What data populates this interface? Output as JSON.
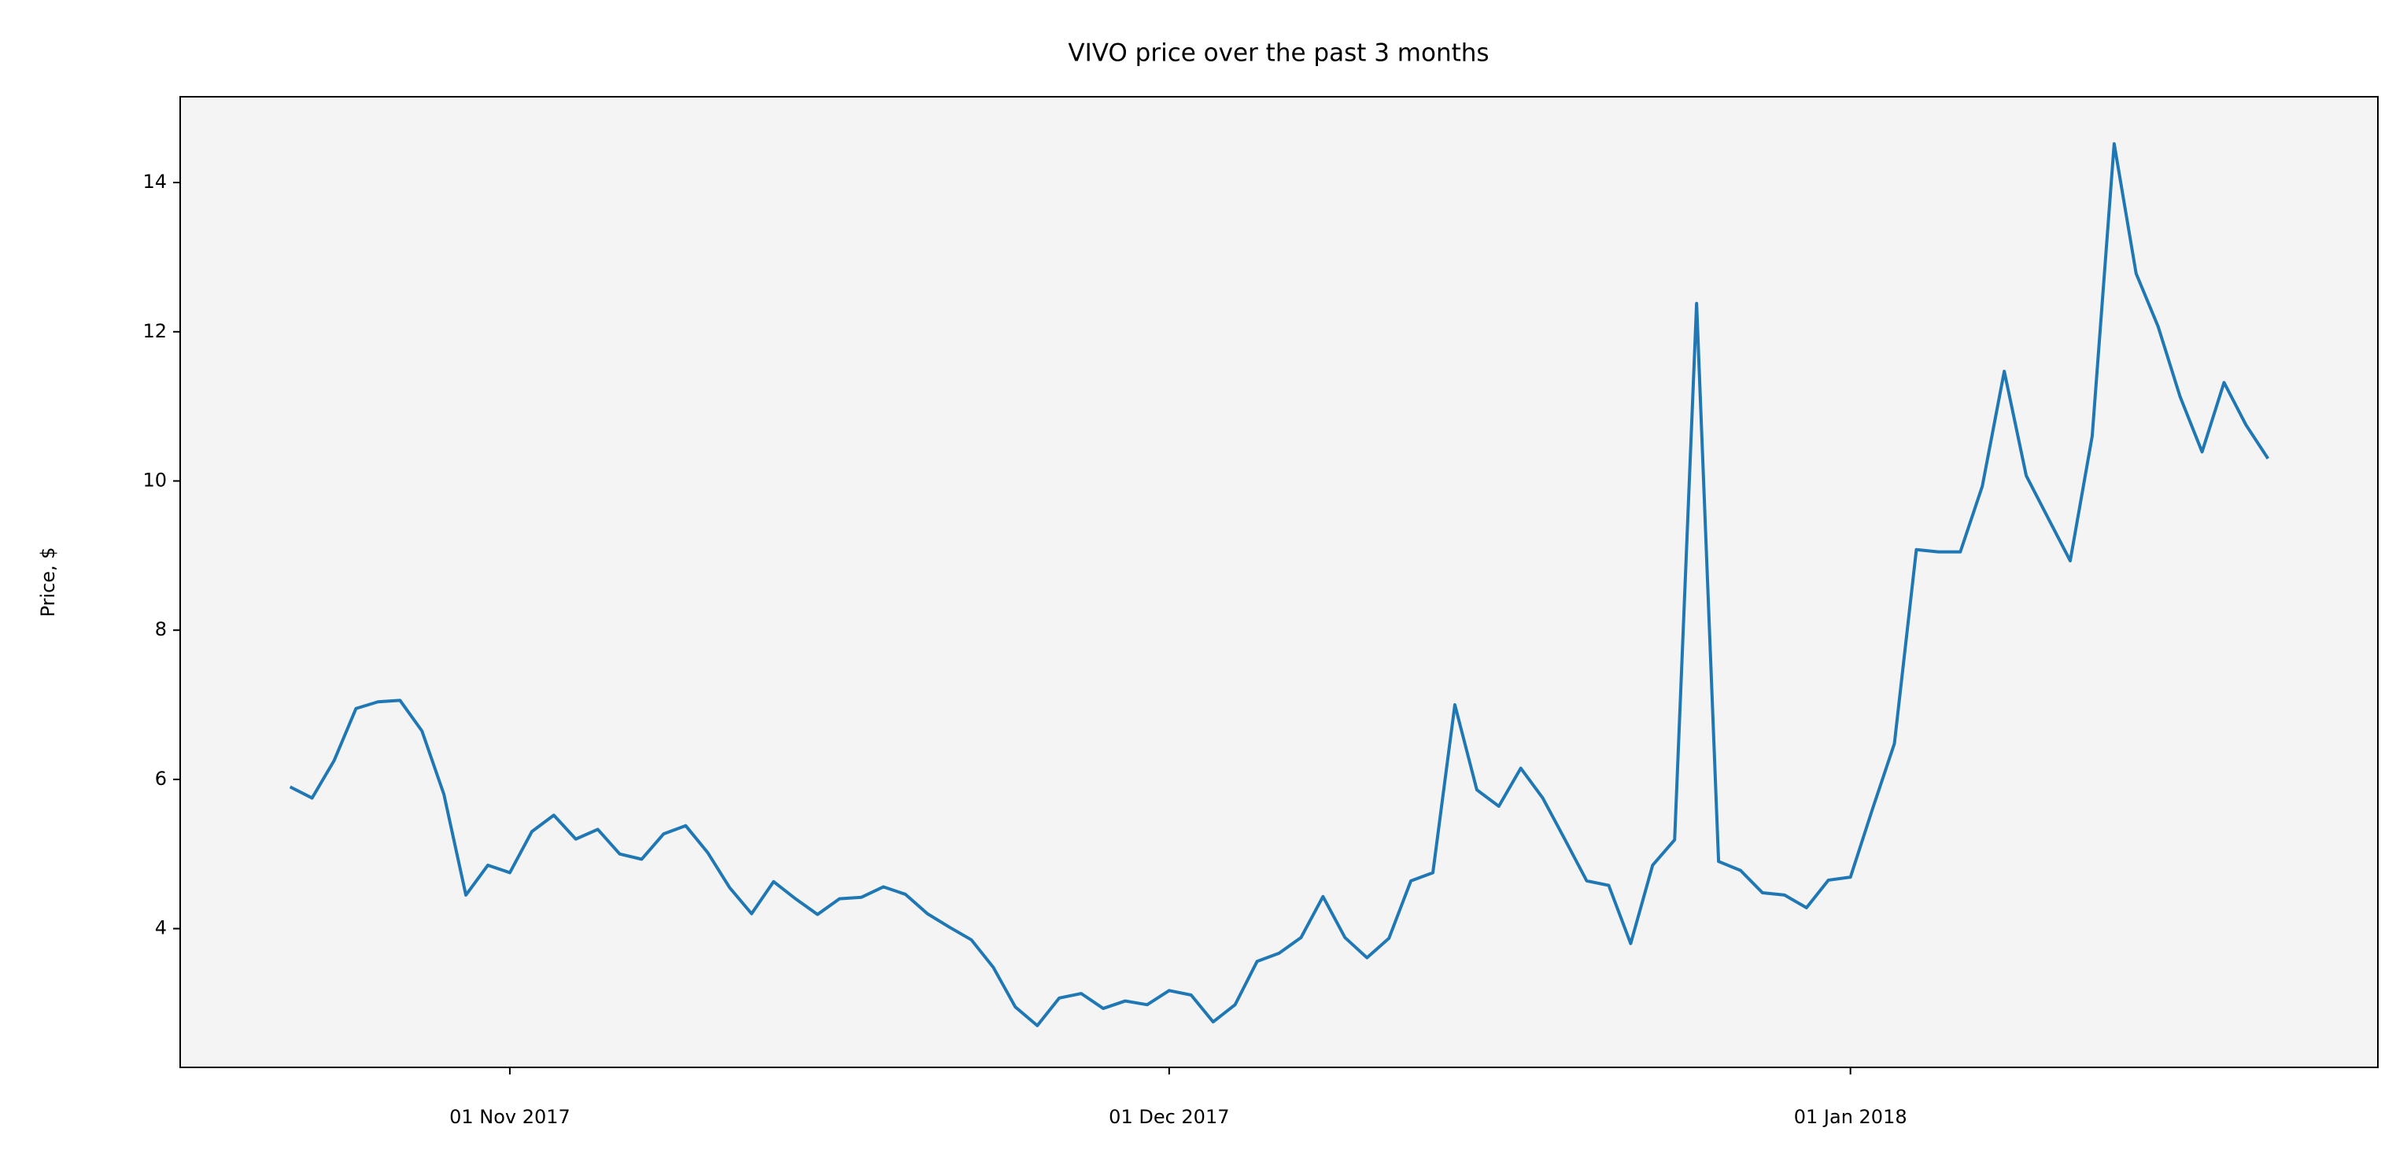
{
  "chart_data": {
    "type": "line",
    "title": "VIVO price over the past 3 months",
    "y_label": "Price, $",
    "x": [
      "2017-10-22",
      "2017-10-23",
      "2017-10-24",
      "2017-10-25",
      "2017-10-26",
      "2017-10-27",
      "2017-10-28",
      "2017-10-29",
      "2017-10-30",
      "2017-10-31",
      "2017-11-01",
      "2017-11-02",
      "2017-11-03",
      "2017-11-04",
      "2017-11-05",
      "2017-11-06",
      "2017-11-07",
      "2017-11-08",
      "2017-11-09",
      "2017-11-10",
      "2017-11-11",
      "2017-11-12",
      "2017-11-13",
      "2017-11-14",
      "2017-11-15",
      "2017-11-16",
      "2017-11-17",
      "2017-11-18",
      "2017-11-19",
      "2017-11-20",
      "2017-11-21",
      "2017-11-22",
      "2017-11-23",
      "2017-11-24",
      "2017-11-25",
      "2017-11-26",
      "2017-11-27",
      "2017-11-28",
      "2017-11-29",
      "2017-11-30",
      "2017-12-01",
      "2017-12-02",
      "2017-12-03",
      "2017-12-04",
      "2017-12-05",
      "2017-12-06",
      "2017-12-07",
      "2017-12-08",
      "2017-12-09",
      "2017-12-10",
      "2017-12-11",
      "2017-12-12",
      "2017-12-13",
      "2017-12-14",
      "2017-12-15",
      "2017-12-16",
      "2017-12-17",
      "2017-12-18",
      "2017-12-19",
      "2017-12-20",
      "2017-12-21",
      "2017-12-22",
      "2017-12-23",
      "2017-12-24",
      "2017-12-25",
      "2017-12-26",
      "2017-12-27",
      "2017-12-28",
      "2017-12-29",
      "2017-12-30",
      "2017-12-31",
      "2018-01-01",
      "2018-01-02",
      "2018-01-03",
      "2018-01-04",
      "2018-01-05",
      "2018-01-06",
      "2018-01-07",
      "2018-01-08",
      "2018-01-09",
      "2018-01-10",
      "2018-01-11",
      "2018-01-12",
      "2018-01-13",
      "2018-01-14",
      "2018-01-15",
      "2018-01-16",
      "2018-01-17",
      "2018-01-18",
      "2018-01-19",
      "2018-01-20"
    ],
    "series": [
      {
        "name": "VIVO",
        "color": "#1f77b4",
        "values": [
          5.9,
          5.75,
          6.25,
          6.95,
          7.04,
          7.06,
          6.65,
          5.8,
          4.45,
          4.85,
          4.75,
          5.3,
          5.52,
          5.2,
          5.33,
          5.0,
          4.93,
          5.27,
          5.38,
          5.02,
          4.55,
          4.2,
          4.63,
          4.4,
          4.19,
          4.4,
          4.42,
          4.56,
          4.46,
          4.2,
          4.02,
          3.85,
          3.48,
          2.95,
          2.7,
          3.07,
          3.13,
          2.93,
          3.03,
          2.98,
          3.17,
          3.11,
          2.75,
          2.98,
          3.56,
          3.67,
          3.88,
          4.43,
          3.88,
          3.61,
          3.87,
          4.64,
          4.75,
          7.0,
          5.86,
          5.64,
          6.15,
          5.75,
          5.2,
          4.64,
          4.58,
          3.8,
          4.85,
          5.19,
          12.38,
          4.9,
          4.78,
          4.48,
          4.45,
          4.28,
          4.65,
          4.69,
          5.6,
          6.48,
          9.08,
          9.05,
          9.05,
          9.93,
          11.47,
          10.07,
          9.5,
          8.93,
          10.6,
          14.52,
          12.78,
          12.07,
          11.13,
          10.39,
          11.32,
          10.75,
          10.3
        ]
      }
    ],
    "xlim": [
      "2017-10-17",
      "2018-01-25"
    ],
    "xticks": [
      {
        "value": "2017-11-01",
        "label": "01 Nov 2017"
      },
      {
        "value": "2017-12-01",
        "label": "01 Dec 2017"
      },
      {
        "value": "2018-01-01",
        "label": "01 Jan 2018"
      }
    ],
    "ylim": [
      2.14,
      15.15
    ],
    "yticks": [
      4,
      6,
      8,
      10,
      12,
      14
    ],
    "grid": false,
    "background": "#f4f4f4"
  }
}
